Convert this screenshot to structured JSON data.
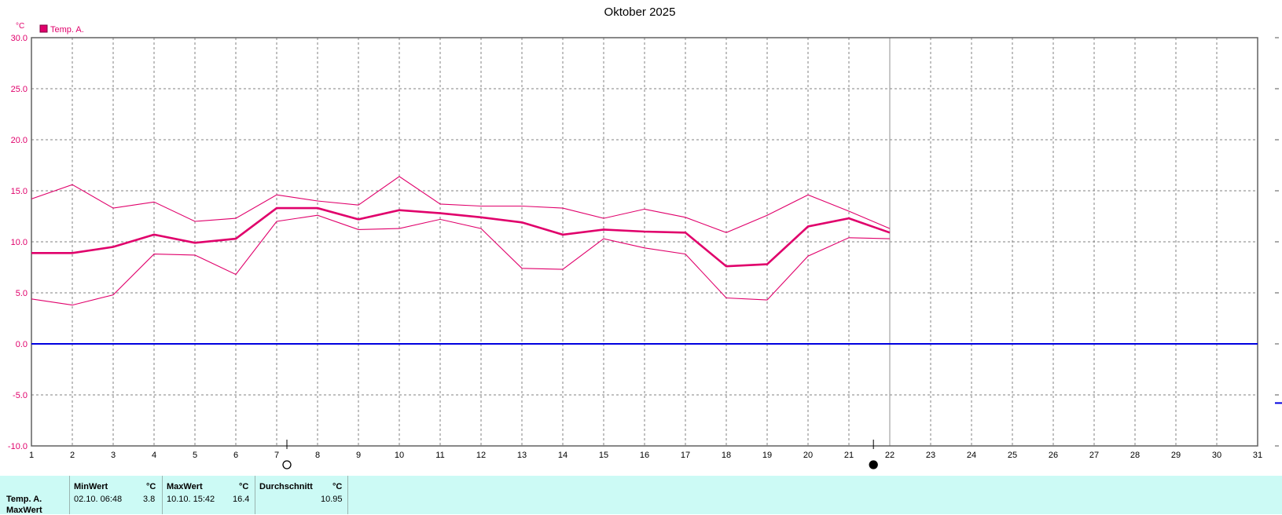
{
  "chart_data": {
    "type": "line",
    "title": "Oktober 2025",
    "unit": "°C",
    "legend": [
      "Temp. A."
    ],
    "legend_position": "top-left",
    "grid": true,
    "ylim": [
      -10,
      30
    ],
    "yticks": [
      "30.0",
      "25.0",
      "20.0",
      "15.0",
      "10.0",
      "5.0",
      "0.0",
      "-5.0",
      "-10.0"
    ],
    "xlim": [
      1,
      31
    ],
    "x": [
      1,
      2,
      3,
      4,
      5,
      6,
      7,
      8,
      9,
      10,
      11,
      12,
      13,
      14,
      15,
      16,
      17,
      18,
      19,
      20,
      21,
      22
    ],
    "series": [
      {
        "name": "Temp. A.",
        "role": "max",
        "values": [
          14.2,
          15.6,
          13.3,
          13.9,
          12.0,
          12.3,
          14.6,
          14.0,
          13.6,
          16.4,
          13.7,
          13.5,
          13.5,
          13.3,
          12.3,
          13.2,
          12.4,
          10.9,
          12.6,
          14.6,
          13.0,
          11.3
        ]
      },
      {
        "name": "Temp. A.",
        "role": "mean",
        "values": [
          8.9,
          8.9,
          9.5,
          10.7,
          9.9,
          10.3,
          13.3,
          13.3,
          12.2,
          13.1,
          12.8,
          12.4,
          11.9,
          10.7,
          11.2,
          11.0,
          10.9,
          7.6,
          7.8,
          11.5,
          12.3,
          10.9
        ]
      },
      {
        "name": "Temp. A.",
        "role": "min",
        "values": [
          4.4,
          3.8,
          4.8,
          8.8,
          8.7,
          6.8,
          12.0,
          12.6,
          11.2,
          11.3,
          12.2,
          11.3,
          7.4,
          7.3,
          10.3,
          9.4,
          8.8,
          4.5,
          4.3,
          8.6,
          10.4,
          10.3
        ]
      }
    ],
    "reference_line": {
      "y": 0,
      "color": "#0000e0"
    },
    "current_day_marker": 22,
    "moon_phases": [
      {
        "day": 7.25,
        "phase": "full-moon-icon"
      },
      {
        "day": 21.6,
        "phase": "new-moon-icon"
      }
    ],
    "colors": {
      "series": "#e0006b",
      "grid": "#808080",
      "zero": "#0000e0"
    }
  },
  "stats": {
    "row_label": "Temp. A.",
    "row_label2": "MaxWert",
    "min": {
      "header": "MinWert",
      "unit": "°C",
      "time": "02.10.  06:48",
      "value": "3.8"
    },
    "max": {
      "header": "MaxWert",
      "unit": "°C",
      "time": "10.10.  15:42",
      "value": "16.4"
    },
    "avg": {
      "header": "Durchschnitt",
      "unit": "°C",
      "value": "10.95"
    }
  }
}
